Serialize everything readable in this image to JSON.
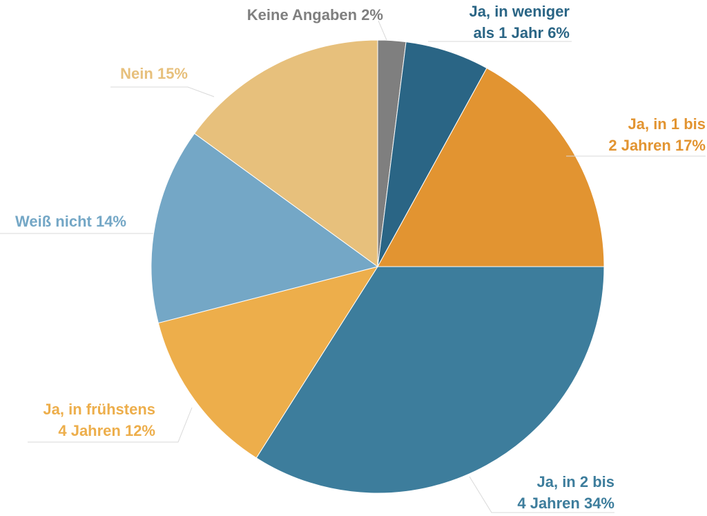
{
  "chart_data": {
    "type": "pie",
    "start_angle": "12 o'clock, clockwise",
    "slices": [
      {
        "label_lines": [
          "Keine Angaben 2%"
        ],
        "value": 2,
        "color": "#7f7f7f"
      },
      {
        "label_lines": [
          "Ja, in weniger",
          "als 1 Jahr 6%"
        ],
        "value": 6,
        "color": "#2a6585"
      },
      {
        "label_lines": [
          "Ja, in 1 bis",
          "2 Jahren 17%"
        ],
        "value": 17,
        "color": "#e29431"
      },
      {
        "label_lines": [
          "Ja, in 2 bis",
          "4 Jahren 34%"
        ],
        "value": 34,
        "color": "#3d7d9c"
      },
      {
        "label_lines": [
          "Ja, in frühstens",
          "4 Jahren 12%"
        ],
        "value": 12,
        "color": "#edae4b"
      },
      {
        "label_lines": [
          "Weiß nicht 14%"
        ],
        "value": 14,
        "color": "#74a7c6"
      },
      {
        "label_lines": [
          "Nein 15%"
        ],
        "value": 15,
        "color": "#e7c07c"
      }
    ]
  }
}
